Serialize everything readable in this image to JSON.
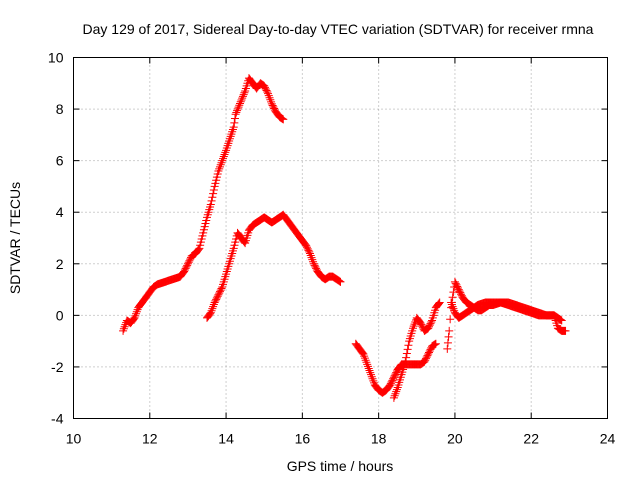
{
  "chart_data": {
    "type": "scatter",
    "title": "Day 129 of 2017, Sidereal Day-to-day VTEC variation (SDTVAR) for receiver rmna",
    "xlabel": "GPS time / hours",
    "ylabel": "SDTVAR / TECUs",
    "xlim": [
      10,
      24
    ],
    "ylim": [
      -4,
      10
    ],
    "xticks": [
      "10",
      "12",
      "14",
      "16",
      "18",
      "20",
      "22",
      "24"
    ],
    "yticks": [
      "-4",
      "-2",
      "0",
      "2",
      "4",
      "6",
      "8",
      "10"
    ],
    "grid": true,
    "marker": "+",
    "color": "#ff0000",
    "series": [
      {
        "points": [
          [
            11.3,
            -0.6
          ],
          [
            11.4,
            -0.2
          ],
          [
            11.5,
            -0.3
          ],
          [
            11.6,
            -0.1
          ],
          [
            11.7,
            0.3
          ],
          [
            11.8,
            0.5
          ],
          [
            11.9,
            0.7
          ],
          [
            12.0,
            0.9
          ],
          [
            12.1,
            1.1
          ],
          [
            12.2,
            1.2
          ],
          [
            12.4,
            1.3
          ],
          [
            12.6,
            1.4
          ],
          [
            12.8,
            1.5
          ],
          [
            12.9,
            1.7
          ],
          [
            13.0,
            2.0
          ],
          [
            13.1,
            2.3
          ],
          [
            13.2,
            2.4
          ],
          [
            13.3,
            2.6
          ],
          [
            13.4,
            3.2
          ],
          [
            13.5,
            3.8
          ],
          [
            13.6,
            4.3
          ],
          [
            13.7,
            5.0
          ],
          [
            13.8,
            5.6
          ],
          [
            13.9,
            6.0
          ],
          [
            14.0,
            6.4
          ],
          [
            14.2,
            7.3
          ],
          [
            14.25,
            7.8
          ],
          [
            14.5,
            8.7
          ],
          [
            14.6,
            9.2
          ],
          [
            14.7,
            9.0
          ],
          [
            14.8,
            8.8
          ],
          [
            14.9,
            9.0
          ],
          [
            15.0,
            8.9
          ],
          [
            15.1,
            8.6
          ],
          [
            15.2,
            8.2
          ],
          [
            15.3,
            7.9
          ],
          [
            15.4,
            7.7
          ],
          [
            15.5,
            7.6
          ]
        ]
      },
      {
        "points": [
          [
            13.5,
            -0.1
          ],
          [
            13.6,
            0.1
          ],
          [
            13.7,
            0.5
          ],
          [
            13.8,
            0.8
          ],
          [
            13.9,
            1.1
          ],
          [
            14.0,
            1.6
          ],
          [
            14.1,
            2.1
          ],
          [
            14.2,
            2.6
          ],
          [
            14.3,
            3.2
          ],
          [
            14.5,
            2.8
          ],
          [
            14.6,
            3.3
          ],
          [
            14.7,
            3.5
          ],
          [
            14.8,
            3.6
          ],
          [
            14.9,
            3.7
          ],
          [
            15.0,
            3.8
          ],
          [
            15.1,
            3.7
          ],
          [
            15.2,
            3.6
          ],
          [
            15.3,
            3.7
          ],
          [
            15.4,
            3.8
          ],
          [
            15.5,
            3.9
          ],
          [
            15.6,
            3.7
          ],
          [
            15.7,
            3.5
          ],
          [
            15.8,
            3.3
          ],
          [
            15.9,
            3.1
          ],
          [
            16.0,
            2.9
          ],
          [
            16.1,
            2.7
          ],
          [
            16.2,
            2.4
          ],
          [
            16.3,
            2.0
          ],
          [
            16.4,
            1.7
          ],
          [
            16.5,
            1.5
          ],
          [
            16.6,
            1.4
          ],
          [
            16.7,
            1.5
          ],
          [
            16.8,
            1.5
          ],
          [
            16.9,
            1.4
          ],
          [
            17.0,
            1.3
          ]
        ]
      },
      {
        "points": [
          [
            17.4,
            -1.1
          ],
          [
            17.5,
            -1.3
          ],
          [
            17.6,
            -1.5
          ],
          [
            17.7,
            -1.9
          ],
          [
            17.8,
            -2.3
          ],
          [
            17.9,
            -2.7
          ],
          [
            18.0,
            -2.9
          ],
          [
            18.1,
            -3.0
          ],
          [
            18.2,
            -2.9
          ],
          [
            18.3,
            -2.7
          ],
          [
            18.4,
            -2.4
          ],
          [
            18.5,
            -2.1
          ],
          [
            18.6,
            -1.9
          ],
          [
            18.7,
            -1.9
          ],
          [
            18.8,
            -1.9
          ],
          [
            18.9,
            -1.9
          ],
          [
            19.0,
            -1.9
          ],
          [
            19.1,
            -1.9
          ],
          [
            19.2,
            -1.8
          ],
          [
            19.3,
            -1.5
          ],
          [
            19.4,
            -1.2
          ],
          [
            19.5,
            -1.1
          ]
        ]
      },
      {
        "points": [
          [
            18.4,
            -3.2
          ],
          [
            18.5,
            -2.8
          ],
          [
            18.6,
            -2.3
          ],
          [
            18.7,
            -1.8
          ],
          [
            18.8,
            -1.0
          ],
          [
            18.9,
            -0.5
          ],
          [
            19.0,
            -0.1
          ],
          [
            19.1,
            -0.3
          ],
          [
            19.2,
            -0.6
          ],
          [
            19.3,
            -0.5
          ],
          [
            19.4,
            -0.2
          ],
          [
            19.5,
            0.3
          ],
          [
            19.6,
            0.5
          ]
        ]
      },
      {
        "points": [
          [
            19.8,
            -1.3
          ],
          [
            19.85,
            -0.6
          ],
          [
            19.9,
            0.3
          ],
          [
            20.0,
            1.3
          ],
          [
            20.1,
            1.0
          ],
          [
            20.2,
            0.7
          ],
          [
            20.3,
            0.5
          ],
          [
            20.4,
            0.4
          ],
          [
            20.5,
            0.3
          ],
          [
            20.6,
            0.2
          ],
          [
            20.7,
            0.2
          ],
          [
            20.8,
            0.3
          ],
          [
            20.9,
            0.4
          ],
          [
            21.0,
            0.4
          ],
          [
            21.2,
            0.5
          ],
          [
            21.4,
            0.5
          ],
          [
            21.6,
            0.4
          ],
          [
            21.8,
            0.3
          ],
          [
            22.0,
            0.2
          ],
          [
            22.2,
            0.1
          ],
          [
            22.4,
            0.0
          ],
          [
            22.6,
            0.0
          ],
          [
            22.7,
            -0.1
          ],
          [
            22.8,
            -0.2
          ]
        ]
      },
      {
        "points": [
          [
            19.9,
            0.5
          ],
          [
            20.0,
            0.1
          ],
          [
            20.1,
            -0.1
          ],
          [
            20.2,
            0.0
          ],
          [
            20.4,
            0.2
          ],
          [
            20.6,
            0.4
          ],
          [
            20.8,
            0.5
          ],
          [
            21.0,
            0.5
          ],
          [
            21.2,
            0.5
          ],
          [
            21.4,
            0.4
          ],
          [
            21.6,
            0.3
          ],
          [
            21.8,
            0.2
          ],
          [
            22.0,
            0.1
          ],
          [
            22.2,
            0.0
          ],
          [
            22.4,
            0.0
          ],
          [
            22.6,
            0.0
          ],
          [
            22.7,
            -0.5
          ],
          [
            22.8,
            -0.6
          ],
          [
            22.9,
            -0.6
          ]
        ]
      }
    ]
  }
}
